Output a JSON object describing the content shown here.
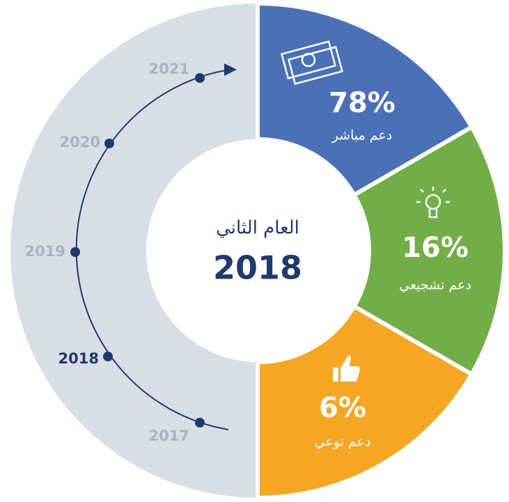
{
  "center": {
    "label": "العام الثاني",
    "year": "2018"
  },
  "segments": [
    {
      "percent": "78%",
      "label": "دعم مباشر"
    },
    {
      "percent": "16%",
      "label": "دعم تشجيعي"
    },
    {
      "percent": "6%",
      "label": "دعم نوعي"
    }
  ],
  "timeline": [
    "2021",
    "2020",
    "2019",
    "2018",
    "2017"
  ]
}
